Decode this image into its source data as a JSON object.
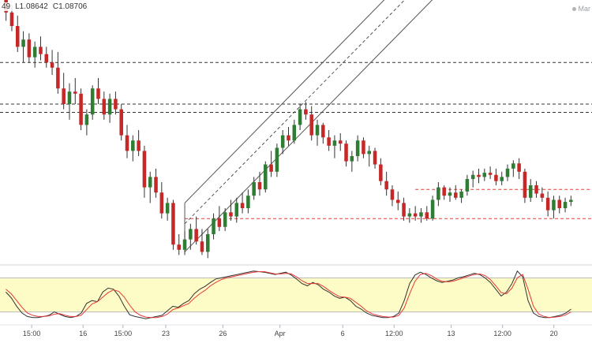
{
  "ohlc_readout": {
    "fragment": "49",
    "low": "L1.08642",
    "close": "C1.08706"
  },
  "market_status": "Mar",
  "colors": {
    "bull": "#2e7d32",
    "bear": "#c62828",
    "wick": "#333333",
    "stoch_k": "#333333",
    "stoch_d": "#e53935",
    "stoch_band": "#fdfbc6",
    "support": "#e53935",
    "resistance": "#333333",
    "channel": "#555555"
  },
  "chart_data": [
    {
      "type": "candlestick",
      "x_tick_labels": [
        "15:00",
        "16",
        "15:00",
        "23",
        "26",
        "Apr",
        "6",
        "12:00",
        "13",
        "12:00",
        "20"
      ],
      "ylim": [
        1.08,
        1.105
      ],
      "ohlc": [
        [
          1.1052,
          1.1055,
          1.103,
          1.1038
        ],
        [
          1.1038,
          1.1045,
          1.102,
          1.1025
        ],
        [
          1.1025,
          1.1035,
          1.1,
          1.1005
        ],
        [
          1.1005,
          1.102,
          1.099,
          1.1012
        ],
        [
          1.1012,
          1.1018,
          1.099,
          1.0995
        ],
        [
          1.0995,
          1.101,
          1.0985,
          1.1005
        ],
        [
          1.1005,
          1.1015,
          1.0992,
          1.0998
        ],
        [
          1.0998,
          1.1005,
          1.0985,
          1.099
        ],
        [
          1.099,
          1.1002,
          1.0978,
          1.0985
        ],
        [
          1.0985,
          1.1,
          1.096,
          1.0965
        ],
        [
          1.0965,
          1.098,
          1.0945,
          1.095
        ],
        [
          1.095,
          1.097,
          1.0935,
          1.0962
        ],
        [
          1.0962,
          1.0975,
          1.095,
          1.096
        ],
        [
          1.096,
          1.0965,
          1.0925,
          1.093
        ],
        [
          1.093,
          1.0945,
          1.092,
          1.094
        ],
        [
          1.094,
          1.0968,
          1.0935,
          1.0965
        ],
        [
          1.0965,
          1.0975,
          1.095,
          1.0955
        ],
        [
          1.0955,
          1.0962,
          1.0935,
          1.094
        ],
        [
          1.094,
          1.096,
          1.0932,
          1.0955
        ],
        [
          1.0955,
          1.0962,
          1.094,
          1.0945
        ],
        [
          1.0945,
          1.095,
          1.0915,
          1.092
        ],
        [
          1.092,
          1.093,
          1.0898,
          1.0905
        ],
        [
          1.0905,
          1.092,
          1.0895,
          1.0915
        ],
        [
          1.0915,
          1.0925,
          1.09,
          1.0905
        ],
        [
          1.0905,
          1.091,
          1.086,
          1.087
        ],
        [
          1.087,
          1.0885,
          1.0855,
          1.088
        ],
        [
          1.088,
          1.0888,
          1.086,
          1.0865
        ],
        [
          1.0865,
          1.0875,
          1.084,
          1.0845
        ],
        [
          1.0845,
          1.086,
          1.0838,
          1.0855
        ],
        [
          1.0855,
          1.0858,
          1.081,
          1.0815
        ],
        [
          1.0815,
          1.0825,
          1.0805,
          1.081
        ],
        [
          1.081,
          1.0828,
          1.0805,
          1.082
        ],
        [
          1.082,
          1.0835,
          1.081,
          1.083
        ],
        [
          1.083,
          1.0842,
          1.0815,
          1.0818
        ],
        [
          1.0818,
          1.083,
          1.0805,
          1.0808
        ],
        [
          1.0808,
          1.083,
          1.0802,
          1.0825
        ],
        [
          1.0825,
          1.0845,
          1.082,
          1.084
        ],
        [
          1.084,
          1.0852,
          1.0828,
          1.0832
        ],
        [
          1.0832,
          1.085,
          1.0828,
          1.0846
        ],
        [
          1.0846,
          1.0858,
          1.0838,
          1.0842
        ],
        [
          1.0842,
          1.086,
          1.0836,
          1.0855
        ],
        [
          1.0855,
          1.0865,
          1.0845,
          1.085
        ],
        [
          1.085,
          1.0868,
          1.0845,
          1.0862
        ],
        [
          1.0862,
          1.088,
          1.0858,
          1.0875
        ],
        [
          1.0875,
          1.0885,
          1.0862,
          1.0868
        ],
        [
          1.0868,
          1.0895,
          1.0865,
          1.0892
        ],
        [
          1.0892,
          1.0905,
          1.088,
          1.0885
        ],
        [
          1.0885,
          1.0912,
          1.088,
          1.0908
        ],
        [
          1.0908,
          1.0925,
          1.0902,
          1.092
        ],
        [
          1.092,
          1.0928,
          1.091,
          1.0915
        ],
        [
          1.0915,
          1.0935,
          1.0912,
          1.093
        ],
        [
          1.093,
          1.095,
          1.0925,
          1.0945
        ],
        [
          1.0945,
          1.0952,
          1.0935,
          1.094
        ],
        [
          1.094,
          1.0948,
          1.0915,
          1.092
        ],
        [
          1.092,
          1.0935,
          1.091,
          1.093
        ],
        [
          1.093,
          1.0932,
          1.0912,
          1.0918
        ],
        [
          1.0918,
          1.0925,
          1.0905,
          1.091
        ],
        [
          1.091,
          1.092,
          1.0898,
          1.0915
        ],
        [
          1.0915,
          1.0922,
          1.0905,
          1.0912
        ],
        [
          1.0912,
          1.0915,
          1.089,
          1.0895
        ],
        [
          1.0895,
          1.0905,
          1.0885,
          1.09
        ],
        [
          1.09,
          1.092,
          1.0895,
          1.0915
        ],
        [
          1.0915,
          1.0918,
          1.0898,
          1.0902
        ],
        [
          1.0902,
          1.091,
          1.089,
          1.0905
        ],
        [
          1.0905,
          1.0908,
          1.0888,
          1.0892
        ],
        [
          1.0892,
          1.0898,
          1.0872,
          1.0876
        ],
        [
          1.0876,
          1.0885,
          1.0862,
          1.0868
        ],
        [
          1.0868,
          1.0872,
          1.0852,
          1.0858
        ],
        [
          1.0858,
          1.0866,
          1.0848,
          1.0855
        ],
        [
          1.0855,
          1.086,
          1.0838,
          1.0842
        ],
        [
          1.0842,
          1.085,
          1.0836,
          1.0845
        ],
        [
          1.0845,
          1.0852,
          1.0838,
          1.0842
        ],
        [
          1.0842,
          1.085,
          1.0836,
          1.0846
        ],
        [
          1.0846,
          1.0852,
          1.0838,
          1.084
        ],
        [
          1.084,
          1.0862,
          1.0838,
          1.0858
        ],
        [
          1.0858,
          1.0875,
          1.0852,
          1.087
        ],
        [
          1.087,
          1.0872,
          1.0858,
          1.0862
        ],
        [
          1.0862,
          1.087,
          1.0856,
          1.0865
        ],
        [
          1.0865,
          1.0872,
          1.0858,
          1.086
        ],
        [
          1.086,
          1.0868,
          1.0855,
          1.0866
        ],
        [
          1.0866,
          1.0882,
          1.0862,
          1.0878
        ],
        [
          1.0878,
          1.0886,
          1.087,
          1.0882
        ],
        [
          1.0882,
          1.0888,
          1.0874,
          1.088
        ],
        [
          1.088,
          1.0888,
          1.0876,
          1.0884
        ],
        [
          1.0884,
          1.089,
          1.0878,
          1.0882
        ],
        [
          1.0882,
          1.0888,
          1.0872,
          1.0876
        ],
        [
          1.0876,
          1.0885,
          1.0872,
          1.088
        ],
        [
          1.088,
          1.0892,
          1.0876,
          1.0888
        ],
        [
          1.0888,
          1.0896,
          1.088,
          1.0893
        ],
        [
          1.0893,
          1.0898,
          1.0878,
          1.0885
        ],
        [
          1.0885,
          1.0888,
          1.0855,
          1.086
        ],
        [
          1.086,
          1.0878,
          1.0856,
          1.0872
        ],
        [
          1.0872,
          1.0876,
          1.086,
          1.0864
        ],
        [
          1.0864,
          1.087,
          1.0856,
          1.086
        ],
        [
          1.086,
          1.0866,
          1.0842,
          1.0848
        ],
        [
          1.0848,
          1.0862,
          1.084,
          1.0858
        ],
        [
          1.0858,
          1.0862,
          1.0845,
          1.085
        ],
        [
          1.085,
          1.086,
          1.0846,
          1.0856
        ],
        [
          1.0856,
          1.0862,
          1.0852,
          1.0858
        ]
      ],
      "horizontal_levels": [
        {
          "price": 1.099,
          "style": "dashed",
          "color": "resistance"
        },
        {
          "price": 1.095,
          "style": "dashed",
          "color": "resistance"
        },
        {
          "price": 1.0942,
          "style": "dashed",
          "color": "resistance"
        },
        {
          "price": 1.0868,
          "style": "dashed",
          "color": "support",
          "from_index": 71
        },
        {
          "price": 1.084,
          "style": "dashed",
          "color": "support",
          "from_index": 31
        }
      ],
      "channel": {
        "start_index": 31,
        "end_index": 78,
        "upper": [
          1.0855,
          1.112
        ],
        "middle": [
          1.0835,
          1.11
        ],
        "lower": [
          1.0808,
          1.1073
        ]
      }
    },
    {
      "type": "line",
      "title": "",
      "ylim": [
        0,
        100
      ],
      "overbought": 80,
      "oversold": 20,
      "series": [
        {
          "values": [
            55,
            45,
            30,
            18,
            12,
            10,
            10,
            12,
            14,
            20,
            16,
            12,
            10,
            12,
            18,
            35,
            40,
            38,
            55,
            62,
            60,
            48,
            30,
            15,
            12,
            10,
            8,
            10,
            12,
            14,
            22,
            30,
            28,
            35,
            40,
            52,
            60,
            65,
            72,
            78,
            80,
            82,
            84,
            86,
            88,
            90,
            92,
            91,
            90,
            88,
            86,
            88,
            90,
            85,
            78,
            70,
            66,
            72,
            68,
            60,
            55,
            48,
            44,
            46,
            40,
            30,
            25,
            18,
            14,
            12,
            10,
            10,
            12,
            18,
            40,
            70,
            85,
            90,
            86,
            80,
            75,
            72,
            74,
            76,
            80,
            82,
            85,
            88,
            86,
            80,
            72,
            60,
            48,
            55,
            70,
            92,
            82,
            40,
            18,
            12,
            10,
            10,
            12,
            14,
            18,
            25
          ]
        },
        {
          "values": [
            60,
            52,
            40,
            28,
            18,
            14,
            12,
            12,
            13,
            16,
            17,
            14,
            12,
            12,
            14,
            24,
            34,
            38,
            46,
            54,
            59,
            56,
            46,
            32,
            20,
            14,
            11,
            10,
            10,
            12,
            16,
            24,
            27,
            31,
            35,
            44,
            52,
            58,
            66,
            72,
            77,
            80,
            82,
            84,
            86,
            88,
            90,
            91,
            91,
            89,
            87,
            87,
            88,
            87,
            82,
            75,
            70,
            70,
            70,
            65,
            58,
            52,
            47,
            46,
            44,
            37,
            30,
            22,
            17,
            14,
            12,
            11,
            11,
            14,
            27,
            52,
            74,
            86,
            88,
            84,
            78,
            74,
            73,
            74,
            77,
            80,
            83,
            86,
            87,
            84,
            77,
            66,
            54,
            52,
            62,
            80,
            86,
            60,
            30,
            16,
            12,
            10,
            11,
            12,
            15,
            20
          ]
        }
      ]
    }
  ]
}
